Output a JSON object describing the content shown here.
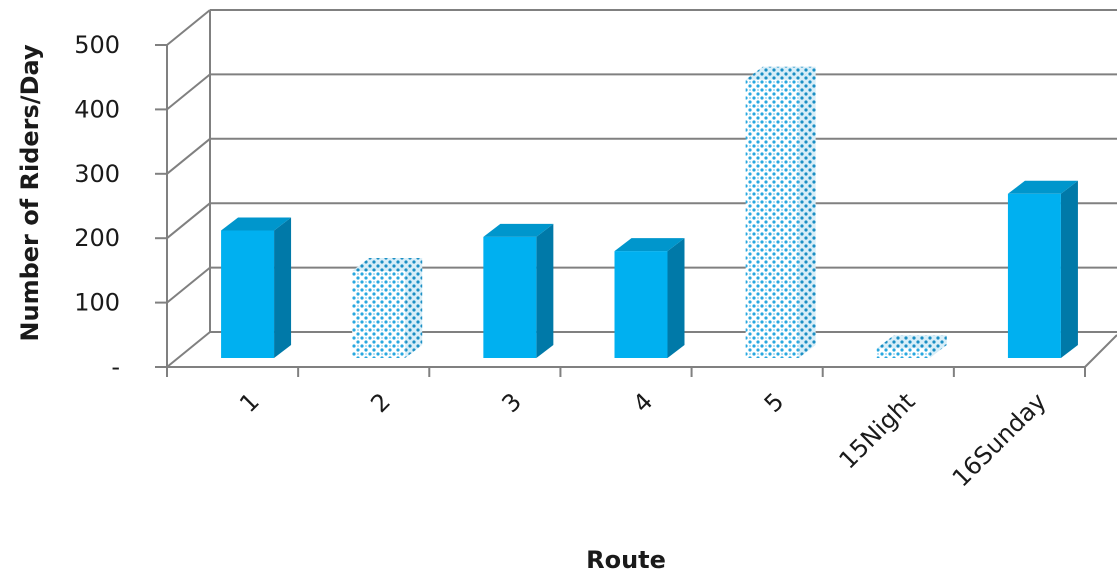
{
  "chart_data": {
    "type": "bar",
    "title": "",
    "xlabel": "Route",
    "ylabel": "Number of Riders/Day",
    "categories": [
      "1",
      "2",
      "3",
      "4",
      "5",
      "15Night",
      "16Sunday"
    ],
    "values": [
      198,
      135,
      188,
      166,
      432,
      15,
      255
    ],
    "patterned": [
      false,
      true,
      false,
      false,
      true,
      true,
      false
    ],
    "ylim": [
      0,
      500
    ],
    "yticks": [
      "-",
      "100",
      "200",
      "300",
      "400",
      "500"
    ],
    "ytick_values": [
      0,
      100,
      200,
      300,
      400,
      500
    ],
    "grid": true,
    "three_d": true,
    "colors": {
      "front": "#00B0F0",
      "side": "#0079A8",
      "top": "#0096CC",
      "pattern_bg": "#ffffff",
      "pattern_dot": "#29A8E0",
      "grid": "#808080"
    }
  }
}
